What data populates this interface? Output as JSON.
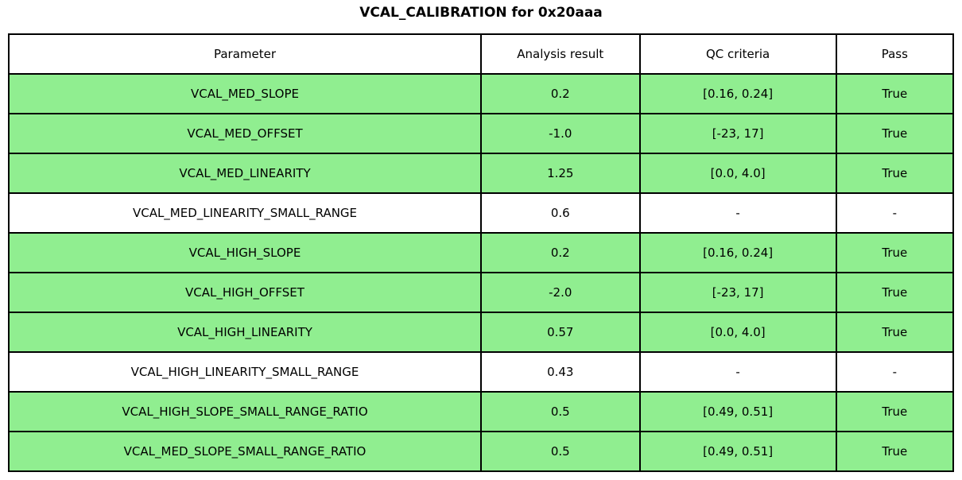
{
  "title": "VCAL_CALIBRATION for 0x20aaa",
  "table": {
    "columns": [
      "Parameter",
      "Analysis result",
      "QC criteria",
      "Pass"
    ],
    "pass_highlight_color": "#90EE90",
    "rows": [
      {
        "parameter": "VCAL_MED_SLOPE",
        "analysis_result": "0.2",
        "qc_criteria": "[0.16, 0.24]",
        "pass": "True",
        "highlight": true
      },
      {
        "parameter": "VCAL_MED_OFFSET",
        "analysis_result": "-1.0",
        "qc_criteria": "[-23, 17]",
        "pass": "True",
        "highlight": true
      },
      {
        "parameter": "VCAL_MED_LINEARITY",
        "analysis_result": "1.25",
        "qc_criteria": "[0.0, 4.0]",
        "pass": "True",
        "highlight": true
      },
      {
        "parameter": "VCAL_MED_LINEARITY_SMALL_RANGE",
        "analysis_result": "0.6",
        "qc_criteria": "-",
        "pass": "-",
        "highlight": false
      },
      {
        "parameter": "VCAL_HIGH_SLOPE",
        "analysis_result": "0.2",
        "qc_criteria": "[0.16, 0.24]",
        "pass": "True",
        "highlight": true
      },
      {
        "parameter": "VCAL_HIGH_OFFSET",
        "analysis_result": "-2.0",
        "qc_criteria": "[-23, 17]",
        "pass": "True",
        "highlight": true
      },
      {
        "parameter": "VCAL_HIGH_LINEARITY",
        "analysis_result": "0.57",
        "qc_criteria": "[0.0, 4.0]",
        "pass": "True",
        "highlight": true
      },
      {
        "parameter": "VCAL_HIGH_LINEARITY_SMALL_RANGE",
        "analysis_result": "0.43",
        "qc_criteria": "-",
        "pass": "-",
        "highlight": false
      },
      {
        "parameter": "VCAL_HIGH_SLOPE_SMALL_RANGE_RATIO",
        "analysis_result": "0.5",
        "qc_criteria": "[0.49, 0.51]",
        "pass": "True",
        "highlight": true
      },
      {
        "parameter": "VCAL_MED_SLOPE_SMALL_RANGE_RATIO",
        "analysis_result": "0.5",
        "qc_criteria": "[0.49, 0.51]",
        "pass": "True",
        "highlight": true
      }
    ]
  }
}
